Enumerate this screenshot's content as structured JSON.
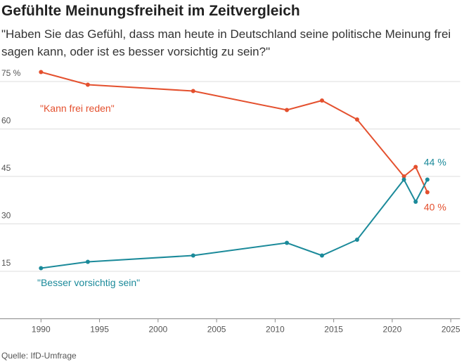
{
  "chart_data": {
    "type": "line",
    "title": "Gefühlte Meinungsfreiheit im Zeitvergleich",
    "subtitle": "\"Haben Sie das Gefühl, dass man heute in Deutschland seine politische Meinung frei sagen kann, oder ist es besser vorsichtig zu sein?\"",
    "source": "Quelle: IfD-Umfrage",
    "x": [
      1990,
      1994,
      2003,
      2011,
      2014,
      2017,
      2021,
      2022,
      2023
    ],
    "series": [
      {
        "name": "\"Kann frei reden\"",
        "color": "#e4502e",
        "values": [
          78,
          74,
          72,
          66,
          69,
          63,
          45,
          48,
          40
        ],
        "end_label": "40 %"
      },
      {
        "name": "\"Besser vorsichtig sein\"",
        "color": "#1b8a9a",
        "values": [
          16,
          18,
          20,
          24,
          20,
          25,
          44,
          37,
          44
        ],
        "end_label": "44 %"
      }
    ],
    "xlim": [
      1986.5,
      2025.8
    ],
    "xticks": [
      1990,
      1995,
      2000,
      2005,
      2010,
      2015,
      2020,
      2025
    ],
    "ylim": [
      0,
      80
    ],
    "yticks": [
      15,
      30,
      45,
      60,
      {
        "value": 75,
        "label": "75 %"
      }
    ],
    "grid": true
  }
}
